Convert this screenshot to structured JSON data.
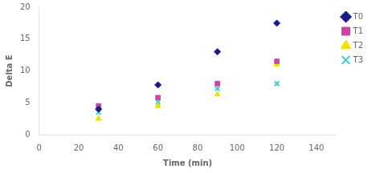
{
  "chart_data": {
    "type": "scatter",
    "xlabel": "Time (min)",
    "ylabel": "Delta E",
    "series": [
      {
        "name": "T0",
        "color": "#1a1a8a",
        "marker": "diamond",
        "x": [
          30,
          60,
          90,
          120
        ],
        "values": [
          4.0,
          7.8,
          13.0,
          17.5
        ]
      },
      {
        "name": "T1",
        "color": "#cc44aa",
        "marker": "square",
        "x": [
          30,
          60,
          90,
          120
        ],
        "values": [
          4.5,
          5.8,
          8.0,
          11.5
        ]
      },
      {
        "name": "T2",
        "color": "#f0e000",
        "marker": "triangle",
        "x": [
          30,
          60,
          90,
          120
        ],
        "values": [
          2.5,
          4.5,
          6.3,
          11.0
        ]
      },
      {
        "name": "T3",
        "color": "#44cccc",
        "marker": "x",
        "x": [
          30,
          60,
          90,
          120
        ],
        "values": [
          3.5,
          5.1,
          7.2,
          8.0
        ]
      }
    ],
    "xlim": [
      0,
      150
    ],
    "xticks": [
      0,
      20,
      40,
      60,
      80,
      100,
      120,
      140
    ],
    "ylim": [
      0,
      20
    ],
    "yticks": [
      0,
      5,
      10,
      15,
      20
    ],
    "grid": false,
    "legend": "right"
  }
}
